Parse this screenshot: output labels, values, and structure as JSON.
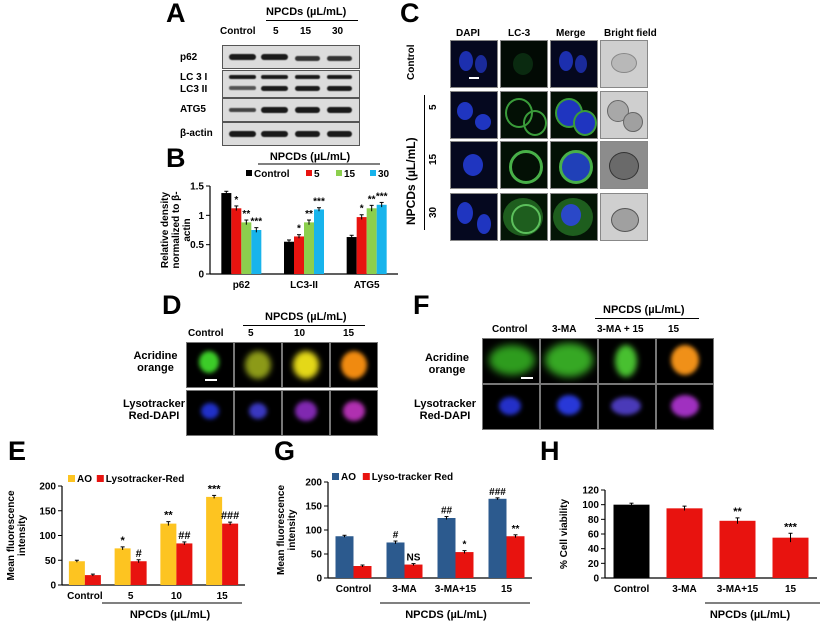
{
  "panel_labels": {
    "A": "A",
    "B": "B",
    "C": "C",
    "D": "D",
    "E": "E",
    "F": "F",
    "G": "G",
    "H": "H"
  },
  "panelA": {
    "header": "NPCDs (µL/mL)",
    "lanes": [
      "Control",
      "5",
      "15",
      "30"
    ],
    "rows": [
      "p62",
      "LC 3 I",
      "LC3 II",
      "ATG5",
      "β-actin"
    ]
  },
  "panelC": {
    "cols": [
      "DAPI",
      "LC-3",
      "Merge",
      "Bright field"
    ],
    "control_label": "Control",
    "group_label": "NPCDs (µL/mL)",
    "rows": [
      "5",
      "15",
      "30"
    ]
  },
  "panelD": {
    "header": "NPCDS (µL/mL)",
    "cols": [
      "Control",
      "5",
      "10",
      "15"
    ],
    "row1": "Acridine orange",
    "row2": "Lysotracker Red-DAPI"
  },
  "panelF": {
    "header": "NPCDS (µL/mL)",
    "cols": [
      "Control",
      "3-MA",
      "3-MA + 15",
      "15"
    ],
    "row1": "Acridine orange",
    "row2": "Lysotracker Red-DAPI"
  },
  "colors": {
    "black": "#000000",
    "red": "#e8130f",
    "green": "#8ccf4d",
    "blue": "#18b4ec",
    "yellow": "#fdc421",
    "navy": "#2c5a8e"
  },
  "chart_data": [
    {
      "id": "B",
      "type": "bar",
      "title": "NPCDs (µL/mL)",
      "ylabel": "Relative density normalized to β-actin",
      "ylim": [
        0,
        1.5
      ],
      "yticks": [
        0,
        0.5,
        1,
        1.5
      ],
      "yticklabels": [
        "0",
        "0.5",
        "1",
        "1.5"
      ],
      "categories": [
        "p62",
        "LC3-II",
        "ATG5"
      ],
      "series": [
        {
          "name": "Control",
          "color": "#000000",
          "values": [
            1.38,
            0.55,
            0.63
          ],
          "errors": [
            0.03,
            0.03,
            0.03
          ],
          "sig": [
            "",
            "",
            ""
          ]
        },
        {
          "name": "5",
          "color": "#e8130f",
          "values": [
            1.12,
            0.64,
            0.97
          ],
          "errors": [
            0.04,
            0.03,
            0.04
          ],
          "sig": [
            "*",
            "*",
            "*"
          ]
        },
        {
          "name": "15",
          "color": "#8ccf4d",
          "values": [
            0.88,
            0.88,
            1.12
          ],
          "errors": [
            0.04,
            0.04,
            0.05
          ],
          "sig": [
            "**",
            "**",
            "**"
          ]
        },
        {
          "name": "30",
          "color": "#18b4ec",
          "values": [
            0.75,
            1.1,
            1.18
          ],
          "errors": [
            0.04,
            0.03,
            0.04
          ],
          "sig": [
            "***",
            "***",
            "***"
          ]
        }
      ]
    },
    {
      "id": "E",
      "type": "bar",
      "ylabel": "Mean fluorescence intensity",
      "xlabel": "NPCDs (µL/mL)",
      "ylim": [
        0,
        200
      ],
      "yticks": [
        0,
        50,
        100,
        150,
        200
      ],
      "yticklabels": [
        "0",
        "50",
        "100",
        "150",
        "200"
      ],
      "categories": [
        "Control",
        "5",
        "10",
        "15"
      ],
      "series": [
        {
          "name": "AO",
          "color": "#fdc421",
          "values": [
            48,
            74,
            124,
            178
          ],
          "errors": [
            2,
            3,
            4,
            3
          ],
          "sig": [
            "",
            "*",
            "**",
            "***"
          ]
        },
        {
          "name": "Lysotracker-Red",
          "color": "#e8130f",
          "values": [
            20,
            48,
            84,
            124
          ],
          "errors": [
            2,
            3,
            3,
            3
          ],
          "sig": [
            "",
            "#",
            "##",
            "###"
          ]
        }
      ]
    },
    {
      "id": "G",
      "type": "bar",
      "ylabel": "Mean fluorescence intensity",
      "xlabel": "NPCDS (µL/mL)",
      "ylim": [
        0,
        200
      ],
      "yticks": [
        0,
        50,
        100,
        150,
        200
      ],
      "yticklabels": [
        "0",
        "50",
        "100",
        "150",
        "200"
      ],
      "categories": [
        "Control",
        "3-MA",
        "3-MA+15",
        "15"
      ],
      "series": [
        {
          "name": "AO",
          "color": "#2c5a8e",
          "values": [
            87,
            74,
            125,
            165
          ],
          "errors": [
            2,
            3,
            3,
            2
          ],
          "sig": [
            "",
            "#",
            "##",
            "###"
          ]
        },
        {
          "name": "Lyso-tracker Red",
          "color": "#e8130f",
          "values": [
            25,
            28,
            54,
            87
          ],
          "errors": [
            2,
            2,
            3,
            3
          ],
          "sig": [
            "",
            "NS",
            "*",
            "**"
          ]
        }
      ]
    },
    {
      "id": "H",
      "type": "bar",
      "ylabel": "% Cell viability",
      "xlabel": "NPCDs (µL/mL)",
      "ylim": [
        0,
        120
      ],
      "yticks": [
        0,
        20,
        40,
        60,
        80,
        100,
        120
      ],
      "yticklabels": [
        "0",
        "20",
        "40",
        "60",
        "80",
        "100",
        "120"
      ],
      "categories": [
        "Control",
        "3-MA",
        "3-MA+15",
        "15"
      ],
      "bar_colors": [
        "#000000",
        "#e8130f",
        "#e8130f",
        "#e8130f"
      ],
      "series": [
        {
          "name": "viability",
          "values": [
            100,
            95,
            78,
            55
          ],
          "errors": [
            2,
            3,
            4,
            6
          ],
          "sig": [
            "",
            "",
            "**",
            "***"
          ]
        }
      ]
    }
  ]
}
